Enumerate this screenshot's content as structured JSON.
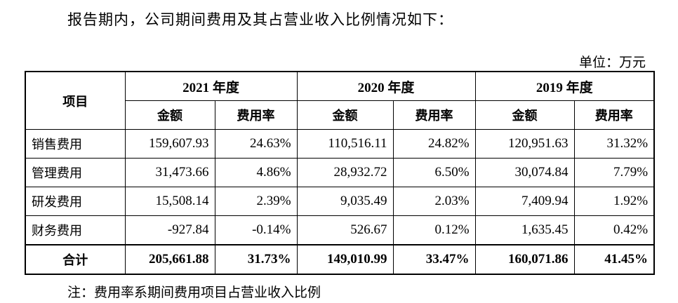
{
  "intro": "报告期内，公司期间费用及其占营业收入比例情况如下：",
  "unit": "单位：万元",
  "table": {
    "item_header": "项目",
    "years": [
      "2021 年度",
      "2020 年度",
      "2019 年度"
    ],
    "sub_headers": [
      "金额",
      "费用率",
      "金额",
      "费用率",
      "金额",
      "费用率"
    ],
    "rows": [
      {
        "name": "销售费用",
        "values": [
          "159,607.93",
          "24.63%",
          "110,516.11",
          "24.82%",
          "120,951.63",
          "31.32%"
        ]
      },
      {
        "name": "管理费用",
        "values": [
          "31,473.66",
          "4.86%",
          "28,932.72",
          "6.50%",
          "30,074.84",
          "7.79%"
        ]
      },
      {
        "name": "研发费用",
        "values": [
          "15,508.14",
          "2.39%",
          "9,035.49",
          "2.03%",
          "7,409.94",
          "1.92%"
        ]
      },
      {
        "name": "财务费用",
        "values": [
          "-927.84",
          "-0.14%",
          "526.67",
          "0.12%",
          "1,635.45",
          "0.42%"
        ]
      }
    ],
    "total": {
      "name": "合计",
      "values": [
        "205,661.88",
        "31.73%",
        "149,010.99",
        "33.47%",
        "160,071.86",
        "41.45%"
      ]
    }
  },
  "note": "注：费用率系期间费用项目占营业收入比例"
}
